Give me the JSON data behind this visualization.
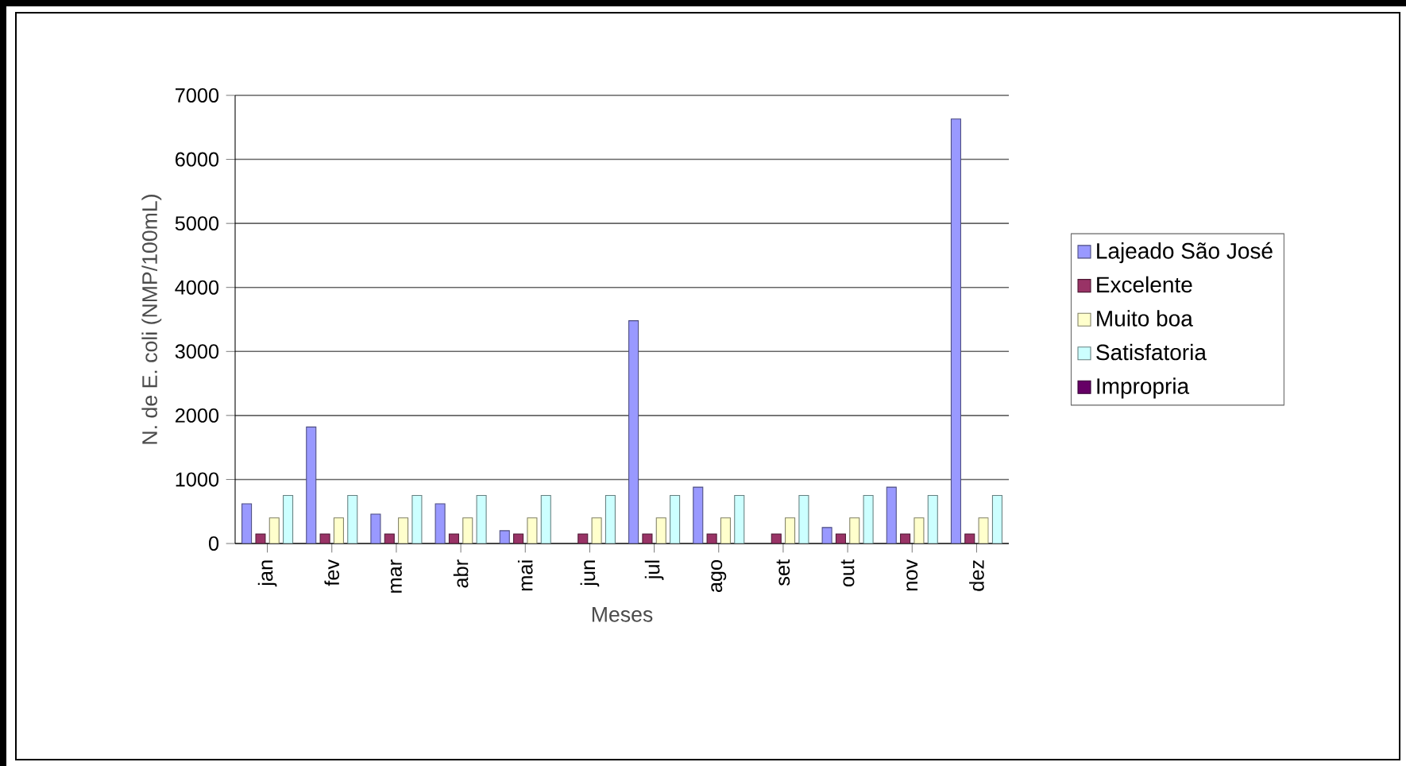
{
  "chart_data": {
    "type": "bar",
    "xlabel": "Meses",
    "ylabel": "N. de E. coli (NMP/100mL)",
    "categories": [
      "jan",
      "fev",
      "mar",
      "abr",
      "mai",
      "jun",
      "jul",
      "ago",
      "set",
      "out",
      "nov",
      "dez"
    ],
    "series": [
      {
        "name": "Lajeado São José",
        "color": "#9999ff",
        "values": [
          620,
          1820,
          460,
          620,
          200,
          null,
          3480,
          880,
          null,
          250,
          880,
          6630
        ]
      },
      {
        "name": "Excelente",
        "color": "#993366",
        "values": [
          150,
          150,
          150,
          150,
          150,
          150,
          150,
          150,
          150,
          150,
          150,
          150
        ]
      },
      {
        "name": "Muito boa",
        "color": "#ffffcc",
        "values": [
          400,
          400,
          400,
          400,
          400,
          400,
          400,
          400,
          400,
          400,
          400,
          400
        ]
      },
      {
        "name": "Satisfatoria",
        "color": "#ccffff",
        "values": [
          750,
          750,
          750,
          750,
          750,
          750,
          750,
          750,
          750,
          750,
          750,
          750
        ]
      },
      {
        "name": "Impropria",
        "color": "#660066",
        "values": [
          null,
          null,
          null,
          null,
          null,
          null,
          null,
          null,
          null,
          null,
          null,
          null
        ]
      }
    ],
    "ylim": [
      0,
      7000
    ],
    "yticks": [
      0,
      1000,
      2000,
      3000,
      4000,
      5000,
      6000,
      7000
    ],
    "grid": "y",
    "legend": "right"
  }
}
